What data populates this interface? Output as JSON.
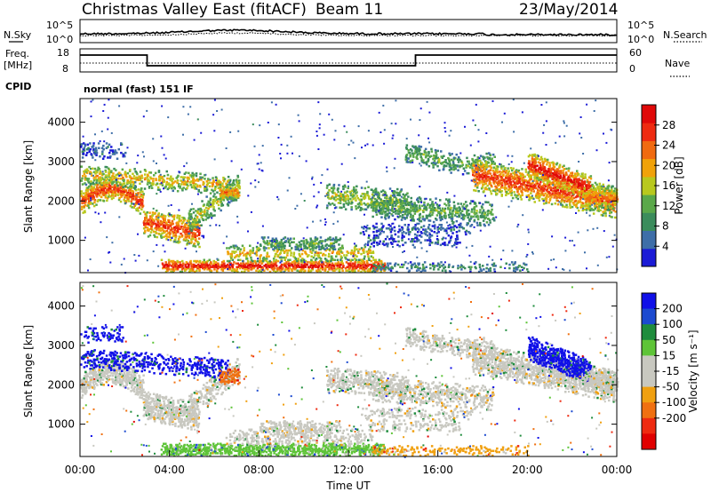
{
  "header": {
    "title": "Christmas Valley East (fitACF)",
    "beam": "Beam 11",
    "date": "23/May/2014"
  },
  "noise_panel": {
    "left_label": "N.Sky",
    "right_label": "N.Search",
    "left_ticks": [
      "10^5",
      "10^0"
    ],
    "right_ticks": [
      "10^5",
      "10^0"
    ]
  },
  "freq_panel": {
    "left_label_line1": "Freq.",
    "left_label_line2": "[MHz]",
    "right_label": "Nave",
    "left_ticks": [
      "18",
      "8"
    ],
    "right_ticks": [
      "60",
      "0"
    ]
  },
  "cpid": {
    "label": "CPID",
    "value": "normal (fast) 151 IF"
  },
  "colors": {
    "power_scale": [
      "#1b1bd6",
      "#3e6ea8",
      "#3b8c5c",
      "#5aa84a",
      "#b8c81e",
      "#f0a20a",
      "#f06a10",
      "#ee2a10",
      "#e00808"
    ],
    "velocity_scale": [
      "#1010e8",
      "#1c4ad0",
      "#1e8c3c",
      "#5ec438",
      "#c8c8c0",
      "#c8c8c0",
      "#f0a010",
      "#f07010",
      "#ee2a10",
      "#e00000"
    ]
  },
  "chart_data": [
    {
      "type": "heatmap",
      "title": "",
      "ylabel": "Slant Range [km]",
      "xlabel": "",
      "ylim": [
        180,
        4600
      ],
      "xlim_hours": [
        0,
        24
      ],
      "ytick_labels": [
        "1000",
        "2000",
        "3000",
        "4000"
      ],
      "colorbar_label": "Power [dB]",
      "colorbar_ticks": [
        "4",
        "8",
        "12",
        "16",
        "20",
        "24",
        "28"
      ],
      "colorbar_range": [
        0,
        32
      ],
      "description": "Backscatter power (dB) versus time and slant range"
    },
    {
      "type": "heatmap",
      "title": "",
      "ylabel": "Slant Range [km]",
      "xlabel": "Time UT",
      "ylim": [
        180,
        4600
      ],
      "xlim_hours": [
        0,
        24
      ],
      "ytick_labels": [
        "1000",
        "2000",
        "3000",
        "4000"
      ],
      "xtick_labels": [
        "00:00",
        "04:00",
        "08:00",
        "12:00",
        "16:00",
        "20:00",
        "00:00"
      ],
      "colorbar_label": "Velocity [m s⁻¹]",
      "colorbar_ticks": [
        "200",
        "100",
        "50",
        "15",
        "-15",
        "-50",
        "-100",
        "-200"
      ],
      "colorbar_range": [
        -250,
        250
      ],
      "description": "Line-of-sight Doppler velocity (m/s) versus time and slant range"
    }
  ]
}
